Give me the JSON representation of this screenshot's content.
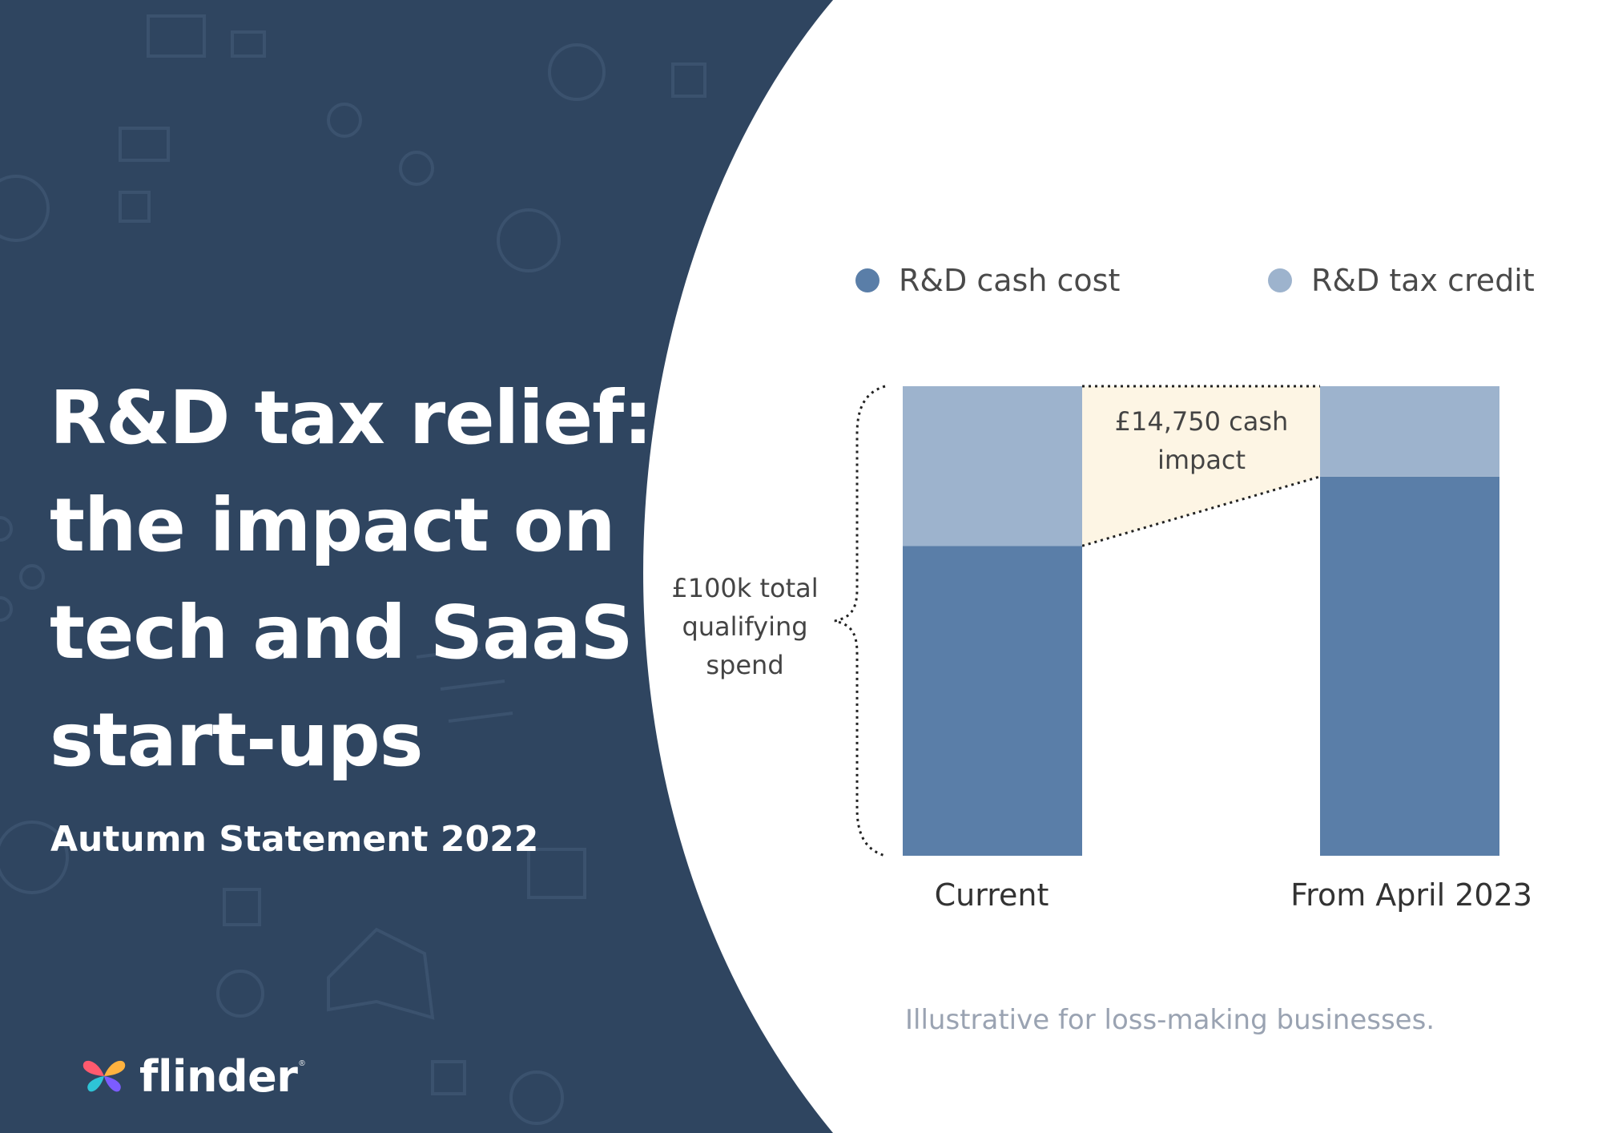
{
  "title_lines": [
    "R&D tax relief:",
    "the impact on",
    "tech and SaaS",
    "start-ups"
  ],
  "subtitle": "Autumn Statement 2022",
  "brand": {
    "name": "flinder",
    "registered_mark": "®",
    "logo_icon": "butterfly-icon"
  },
  "colors": {
    "panel_bg": "#2f4560",
    "panel_icons": "#3b526e",
    "cash_cost": "#5a7ea8",
    "tax_credit": "#9db3cd",
    "impact_fill": "#fdf5e4"
  },
  "chart_data": {
    "type": "bar",
    "stacked": true,
    "categories": [
      "Current",
      "From April 2023"
    ],
    "series": [
      {
        "name": "R&D cash cost",
        "values": [
          66,
          80.75
        ],
        "color": "#5a7ea8"
      },
      {
        "name": "R&D tax credit",
        "values": [
          34,
          19.25
        ],
        "color": "#9db3cd"
      }
    ],
    "ylim": [
      0,
      100
    ],
    "legend": "top",
    "grid": false,
    "annotations": {
      "impact_label": "£14,750 cash impact",
      "brace_label_lines": [
        "£100k total",
        "qualifying",
        "spend"
      ]
    }
  },
  "footnote": "Illustrative for loss-making businesses."
}
